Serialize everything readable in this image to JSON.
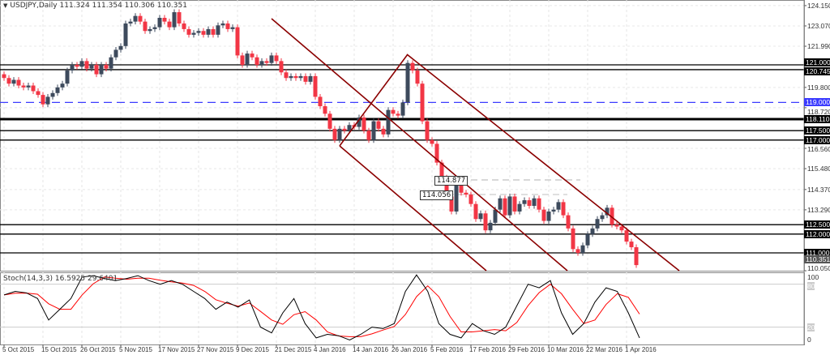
{
  "header": {
    "symbol": "USDJPY,Daily",
    "ohlc": "111.324 111.354 110.306 110.351"
  },
  "indicator": {
    "label": "Stoch(14,3,3) 16.5925 29.6401"
  },
  "colors": {
    "bull": "#3d4a5c",
    "bear": "#f23645",
    "channel": "#8b0000",
    "blue_level": "#3b3bff",
    "stoch_main": "#000000",
    "stoch_signal": "#ff0000"
  },
  "price_axis": {
    "ticks": [
      "124.150",
      "123.070",
      "121.990",
      "119.800",
      "118.720",
      "116.560",
      "115.480",
      "114.370",
      "113.290",
      "110.050"
    ],
    "levels": [
      {
        "value": "121.000",
        "style": "solid"
      },
      {
        "value": "120.745",
        "style": "solid"
      },
      {
        "value": "119.000",
        "style": "dashed-blue"
      },
      {
        "value": "118.110",
        "style": "thick"
      },
      {
        "value": "117.500",
        "style": "solid"
      },
      {
        "value": "117.000",
        "style": "solid"
      },
      {
        "value": "112.500",
        "style": "solid"
      },
      {
        "value": "112.000",
        "style": "solid"
      },
      {
        "value": "111.000",
        "style": "solid"
      }
    ],
    "current_price": "110.351",
    "callouts": [
      "114.877",
      "114.056"
    ]
  },
  "stoch_axis": {
    "ticks": [
      "100",
      "80",
      "20",
      "0"
    ]
  },
  "time_axis": {
    "labels": [
      "5 Oct 2015",
      "15 Oct 2015",
      "26 Oct 2015",
      "5 Nov 2015",
      "17 Nov 2015",
      "27 Nov 2015",
      "9 Dec 2015",
      "21 Dec 2015",
      "4 Jan 2016",
      "14 Jan 2016",
      "26 Jan 2016",
      "5 Feb 2016",
      "17 Feb 2016",
      "29 Feb 2016",
      "10 Mar 2016",
      "22 Mar 2016",
      "1 Apr 2016"
    ]
  },
  "chart_data": {
    "type": "candlestick",
    "first_open": 120.5,
    "closes": [
      120.3,
      120.0,
      120.2,
      119.9,
      119.8,
      119.9,
      119.6,
      119.4,
      118.9,
      119.3,
      119.5,
      119.8,
      120.0,
      120.7,
      121.0,
      120.9,
      121.2,
      120.8,
      121.0,
      120.5,
      121.0,
      120.8,
      121.4,
      121.8,
      122.0,
      123.2,
      123.3,
      123.6,
      123.3,
      122.8,
      122.9,
      123.0,
      123.5,
      123.3,
      123.0,
      123.8,
      123.2,
      122.9,
      122.6,
      122.7,
      122.8,
      122.6,
      122.9,
      122.6,
      123.1,
      123.2,
      122.9,
      123.0,
      121.5,
      121.0,
      121.6,
      121.4,
      121.0,
      121.2,
      121.1,
      121.5,
      121.2,
      120.6,
      120.3,
      120.4,
      120.3,
      120.4,
      120.1,
      120.4,
      119.3,
      118.8,
      118.4,
      117.6,
      117.0,
      117.6,
      117.5,
      117.8,
      117.7,
      118.2,
      117.5,
      117.0,
      118.0,
      117.6,
      117.3,
      118.6,
      118.4,
      118.3,
      119.0,
      121.1,
      120.7,
      120.0,
      118.0,
      117.0,
      116.8,
      115.8,
      115.0,
      114.0,
      113.2,
      114.9,
      114.2,
      114.1,
      113.6,
      112.8,
      113.1,
      112.2,
      112.6,
      113.3,
      113.9,
      113.0,
      114.0,
      113.2,
      113.6,
      113.8,
      113.5,
      113.9,
      113.3,
      112.7,
      113.2,
      113.3,
      113.7,
      113.0,
      112.3,
      111.2,
      111.0,
      111.4,
      112.0,
      112.3,
      112.8,
      113.0,
      113.4,
      112.5,
      112.4,
      112.2,
      111.6,
      111.3,
      110.35
    ],
    "ylim": [
      110.05,
      124.15
    ],
    "stochastic": {
      "k": [
        65,
        70,
        68,
        60,
        30,
        45,
        60,
        90,
        92,
        88,
        85,
        88,
        92,
        85,
        80,
        85,
        80,
        70,
        60,
        45,
        55,
        48,
        58,
        20,
        12,
        40,
        60,
        25,
        5,
        10,
        8,
        2,
        10,
        20,
        18,
        25,
        70,
        93,
        70,
        25,
        10,
        5,
        25,
        15,
        10,
        20,
        50,
        80,
        75,
        85,
        40,
        10,
        25,
        55,
        75,
        70,
        40,
        5
      ],
      "range": [
        0,
        100
      ],
      "levels": [
        80,
        20
      ]
    }
  }
}
